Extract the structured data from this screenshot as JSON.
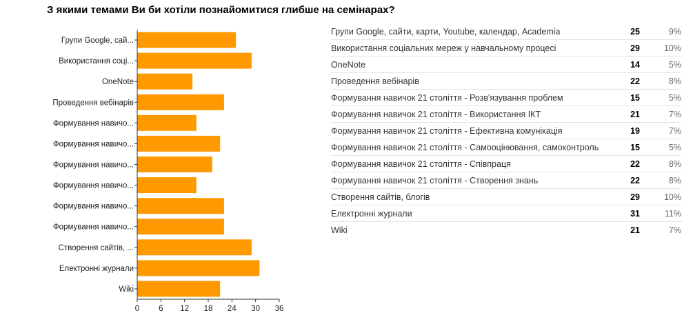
{
  "title": "З якими темами Ви би хотіли познайомитися глибше на семінарах?",
  "colors": {
    "bar": "#ff9900",
    "axis": "#333333",
    "grid": "#cccccc"
  },
  "chart_data": {
    "type": "bar",
    "orientation": "horizontal",
    "categories": [
      "Групи Google, сай...",
      "Використання соці...",
      "OneNote",
      "Проведення вебінарів",
      "Формування навичо...",
      "Формування навичо...",
      "Формування навичо...",
      "Формування навичо...",
      "Формування навичо...",
      "Формування навичо...",
      "Створення сайтів, ...",
      "Електронні журнали",
      "Wiki"
    ],
    "values": [
      25,
      29,
      14,
      22,
      15,
      21,
      19,
      15,
      22,
      22,
      29,
      31,
      21
    ],
    "xlim": [
      0,
      36
    ],
    "xticks": [
      0,
      6,
      12,
      18,
      24,
      30,
      36
    ],
    "grid": false
  },
  "summary": [
    {
      "label": "Групи Google, сайти, карти, Youtube, календар, Academia",
      "count": "25",
      "percent": "9%"
    },
    {
      "label": "Використання соціальних мереж у навчальному процесі",
      "count": "29",
      "percent": "10%"
    },
    {
      "label": "OneNote",
      "count": "14",
      "percent": "5%"
    },
    {
      "label": "Проведення вебінарів",
      "count": "22",
      "percent": "8%"
    },
    {
      "label": "Формування навичок 21 століття - Розв'язування проблем",
      "count": "15",
      "percent": "5%"
    },
    {
      "label": "Формування навичок 21 століття - Використання ІКТ",
      "count": "21",
      "percent": "7%"
    },
    {
      "label": "Формування навичок 21 століття - Ефективна комунікація",
      "count": "19",
      "percent": "7%"
    },
    {
      "label": "Формування навичок 21 століття - Самооцінювання, самоконтроль",
      "count": "15",
      "percent": "5%"
    },
    {
      "label": "Формування навичок 21 століття - Співпраця",
      "count": "22",
      "percent": "8%"
    },
    {
      "label": "Формування навичок 21 століття - Створення знань",
      "count": "22",
      "percent": "8%"
    },
    {
      "label": "Створення сайтів, блогів",
      "count": "29",
      "percent": "10%"
    },
    {
      "label": "Електронні журнали",
      "count": "31",
      "percent": "11%"
    },
    {
      "label": "Wiki",
      "count": "21",
      "percent": "7%"
    }
  ]
}
